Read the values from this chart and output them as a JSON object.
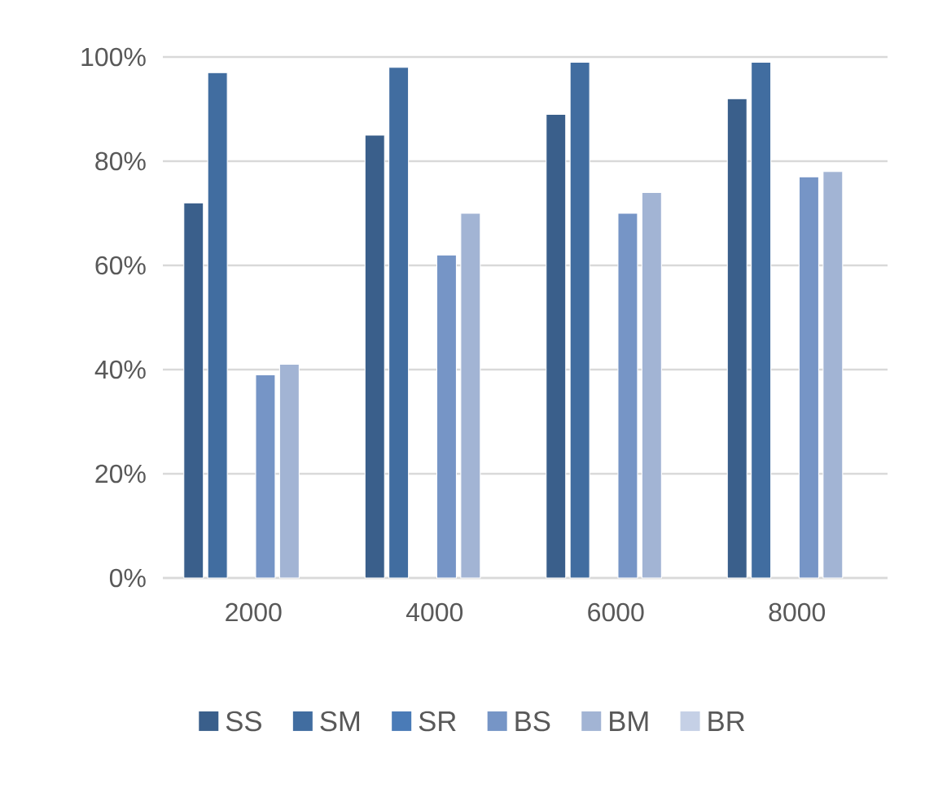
{
  "chart_data": {
    "type": "bar",
    "categories": [
      "2000",
      "4000",
      "6000",
      "8000"
    ],
    "series": [
      {
        "name": "SS",
        "color": "#3a5f8b",
        "values": [
          72,
          85,
          89,
          92
        ]
      },
      {
        "name": "SM",
        "color": "#416da0",
        "values": [
          97,
          98,
          99,
          99
        ]
      },
      {
        "name": "SR",
        "color": "#4a7bb7",
        "values": [
          null,
          null,
          null,
          null
        ]
      },
      {
        "name": "BS",
        "color": "#7695c6",
        "values": [
          39,
          62,
          70,
          77
        ]
      },
      {
        "name": "BM",
        "color": "#a2b4d4",
        "values": [
          41,
          70,
          74,
          78
        ]
      },
      {
        "name": "BR",
        "color": "#c5d0e6",
        "values": [
          null,
          null,
          null,
          null
        ]
      }
    ],
    "ylim": [
      0,
      100
    ],
    "yticks": [
      {
        "value": 0,
        "label": "0%"
      },
      {
        "value": 20,
        "label": "20%"
      },
      {
        "value": 40,
        "label": "40%"
      },
      {
        "value": 60,
        "label": "60%"
      },
      {
        "value": 80,
        "label": "80%"
      },
      {
        "value": 100,
        "label": "100%"
      }
    ],
    "grid": "y",
    "legend": "bottom"
  }
}
